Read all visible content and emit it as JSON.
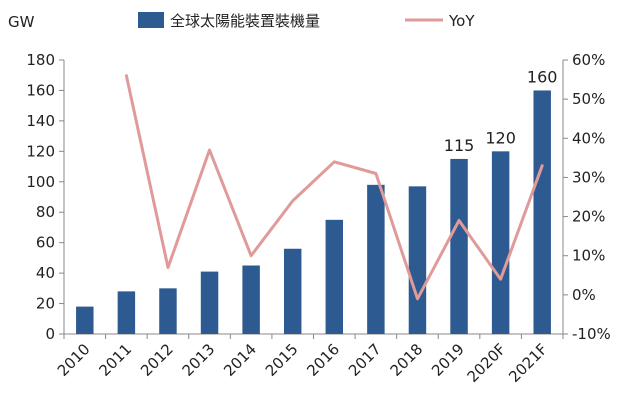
{
  "chart_data": {
    "type": "bar",
    "categories": [
      "2010",
      "2011",
      "2012",
      "2013",
      "2014",
      "2015",
      "2016",
      "2017",
      "2018",
      "2019",
      "2020F",
      "2021F"
    ],
    "series": [
      {
        "name": "全球太陽能裝置裝機量",
        "type": "bar",
        "axis": "left",
        "color": "#2E5A92",
        "values": [
          18,
          28,
          30,
          41,
          45,
          56,
          75,
          98,
          97,
          115,
          120,
          160
        ]
      },
      {
        "name": "YoY",
        "type": "line",
        "axis": "right",
        "color": "#E09A9A",
        "values": [
          null,
          0.56,
          0.07,
          0.37,
          0.1,
          0.24,
          0.34,
          0.31,
          -0.01,
          0.19,
          0.04,
          0.33
        ]
      }
    ],
    "data_labels": [
      {
        "category": "2019",
        "text": "115"
      },
      {
        "category": "2020F",
        "text": "120"
      },
      {
        "category": "2021F",
        "text": "160"
      }
    ],
    "ylabel": "GW",
    "ylim": [
      0,
      180
    ],
    "yticks": [
      0,
      20,
      40,
      60,
      80,
      100,
      120,
      140,
      160,
      180
    ],
    "y2lim": [
      -0.1,
      0.6
    ],
    "y2ticks": [
      "-10%",
      "0%",
      "10%",
      "20%",
      "30%",
      "40%",
      "50%",
      "60%"
    ],
    "legend_position": "top",
    "grid": false
  }
}
